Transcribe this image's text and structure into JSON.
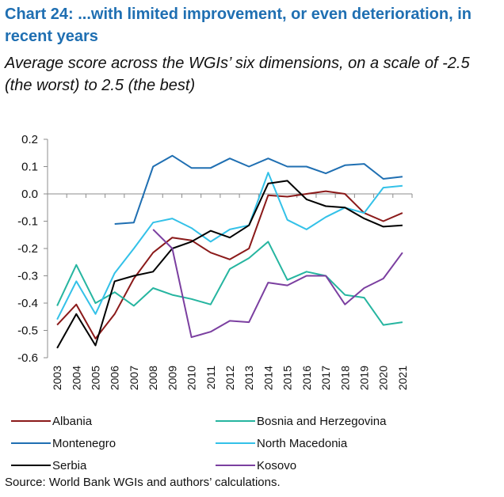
{
  "chart_data": {
    "type": "line",
    "title": "Chart 24: ...with limited improvement, or even deterioration, in recent years",
    "subtitle": "Average score across the WGIs’ six dimensions, on a scale of -2.5 (the worst) to 2.5 (the best)",
    "xlabel": "",
    "ylabel": "",
    "ylim": [
      -0.6,
      0.2
    ],
    "yticks": [
      "0.2",
      "0.1",
      "0.0",
      "-0.1",
      "-0.2",
      "-0.3",
      "-0.4",
      "-0.5",
      "-0.6"
    ],
    "categories": [
      "2003",
      "2004",
      "2005",
      "2006",
      "2007",
      "2008",
      "2009",
      "2010",
      "2011",
      "2012",
      "2013",
      "2014",
      "2015",
      "2016",
      "2017",
      "2018",
      "2019",
      "2020",
      "2021"
    ],
    "legend_position": "bottom",
    "series": [
      {
        "name": "Albania",
        "color": "#8b1a1a",
        "values": [
          -0.48,
          -0.405,
          -0.53,
          -0.44,
          -0.31,
          -0.215,
          -0.16,
          -0.17,
          -0.215,
          -0.24,
          -0.2,
          -0.005,
          -0.01,
          0.0,
          0.01,
          0.0,
          -0.07,
          -0.1,
          -0.07
        ]
      },
      {
        "name": "Bosnia and Herzegovina",
        "color": "#26b5a0",
        "values": [
          -0.41,
          -0.26,
          -0.4,
          -0.36,
          -0.41,
          -0.345,
          -0.37,
          -0.385,
          -0.405,
          -0.275,
          -0.235,
          -0.175,
          -0.315,
          -0.285,
          -0.3,
          -0.37,
          -0.38,
          -0.48,
          -0.47
        ]
      },
      {
        "name": "Montenegro",
        "color": "#1f6fb2",
        "values": [
          null,
          null,
          null,
          -0.11,
          -0.105,
          0.1,
          0.14,
          0.095,
          0.095,
          0.13,
          0.1,
          0.13,
          0.1,
          0.1,
          0.075,
          0.105,
          0.11,
          0.055,
          0.063
        ]
      },
      {
        "name": "North Macedonia",
        "color": "#33c1e8",
        "values": [
          -0.46,
          -0.32,
          -0.44,
          -0.29,
          -0.2,
          -0.105,
          -0.09,
          -0.125,
          -0.175,
          -0.13,
          -0.115,
          0.078,
          -0.095,
          -0.13,
          -0.085,
          -0.05,
          -0.07,
          0.023,
          0.03
        ]
      },
      {
        "name": "Serbia",
        "color": "#000000",
        "values": [
          -0.565,
          -0.44,
          -0.555,
          -0.32,
          -0.3,
          -0.285,
          -0.2,
          -0.175,
          -0.135,
          -0.16,
          -0.115,
          0.038,
          0.048,
          -0.02,
          -0.045,
          -0.05,
          -0.09,
          -0.12,
          -0.115
        ]
      },
      {
        "name": "Kosovo",
        "color": "#7b3fa0",
        "values": [
          null,
          null,
          null,
          null,
          null,
          -0.13,
          -0.2,
          -0.525,
          -0.505,
          -0.465,
          -0.47,
          -0.325,
          -0.335,
          -0.3,
          -0.3,
          -0.405,
          -0.345,
          -0.31,
          -0.215
        ]
      }
    ],
    "source": "Source: World Bank WGIs and authors’ calculations."
  }
}
